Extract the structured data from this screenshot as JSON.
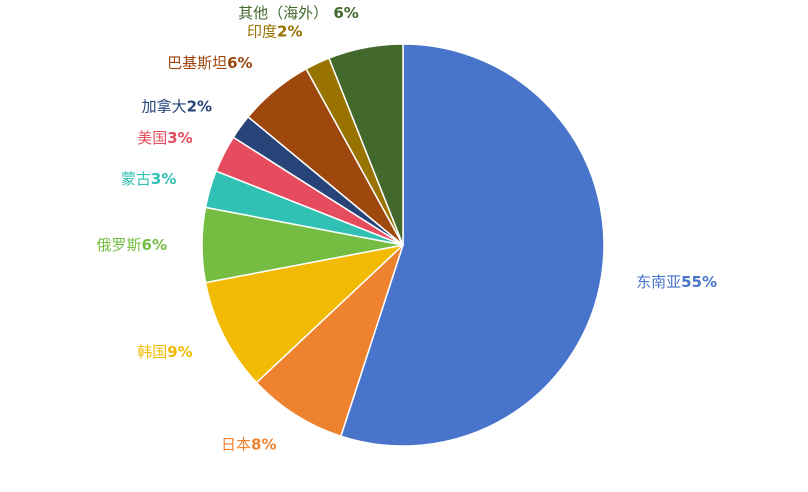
{
  "chart_data": {
    "type": "pie",
    "title": "",
    "unit": "%",
    "slices": [
      {
        "name": "东南亚",
        "value": 55,
        "label": "55%",
        "color": "#4874CB"
      },
      {
        "name": "日本",
        "value": 8,
        "label": "8%",
        "color": "#EE822F"
      },
      {
        "name": "韩国",
        "value": 9,
        "label": "9%",
        "color": "#F2BA02"
      },
      {
        "name": "俄罗斯",
        "value": 6,
        "label": "6%",
        "color": "#75BD42"
      },
      {
        "name": "蒙古",
        "value": 3,
        "label": "3%",
        "color": "#30C0B4"
      },
      {
        "name": "美国",
        "value": 3,
        "label": "3%",
        "color": "#E54C5E"
      },
      {
        "name": "加拿大",
        "value": 2,
        "label": "2%",
        "color": "#264478"
      },
      {
        "name": "巴基斯坦",
        "value": 6,
        "label": "6%",
        "color": "#9E480E"
      },
      {
        "name": "印度",
        "value": 2,
        "label": "2%",
        "color": "#997300"
      },
      {
        "name": "其他（海外）",
        "value": 6,
        "label": " 6%",
        "color": "#43682B"
      }
    ],
    "start_angle_deg": 0,
    "direction": "clockwise",
    "slice_border_color": "#ffffff",
    "legend": "none",
    "data_labels": "outside"
  }
}
